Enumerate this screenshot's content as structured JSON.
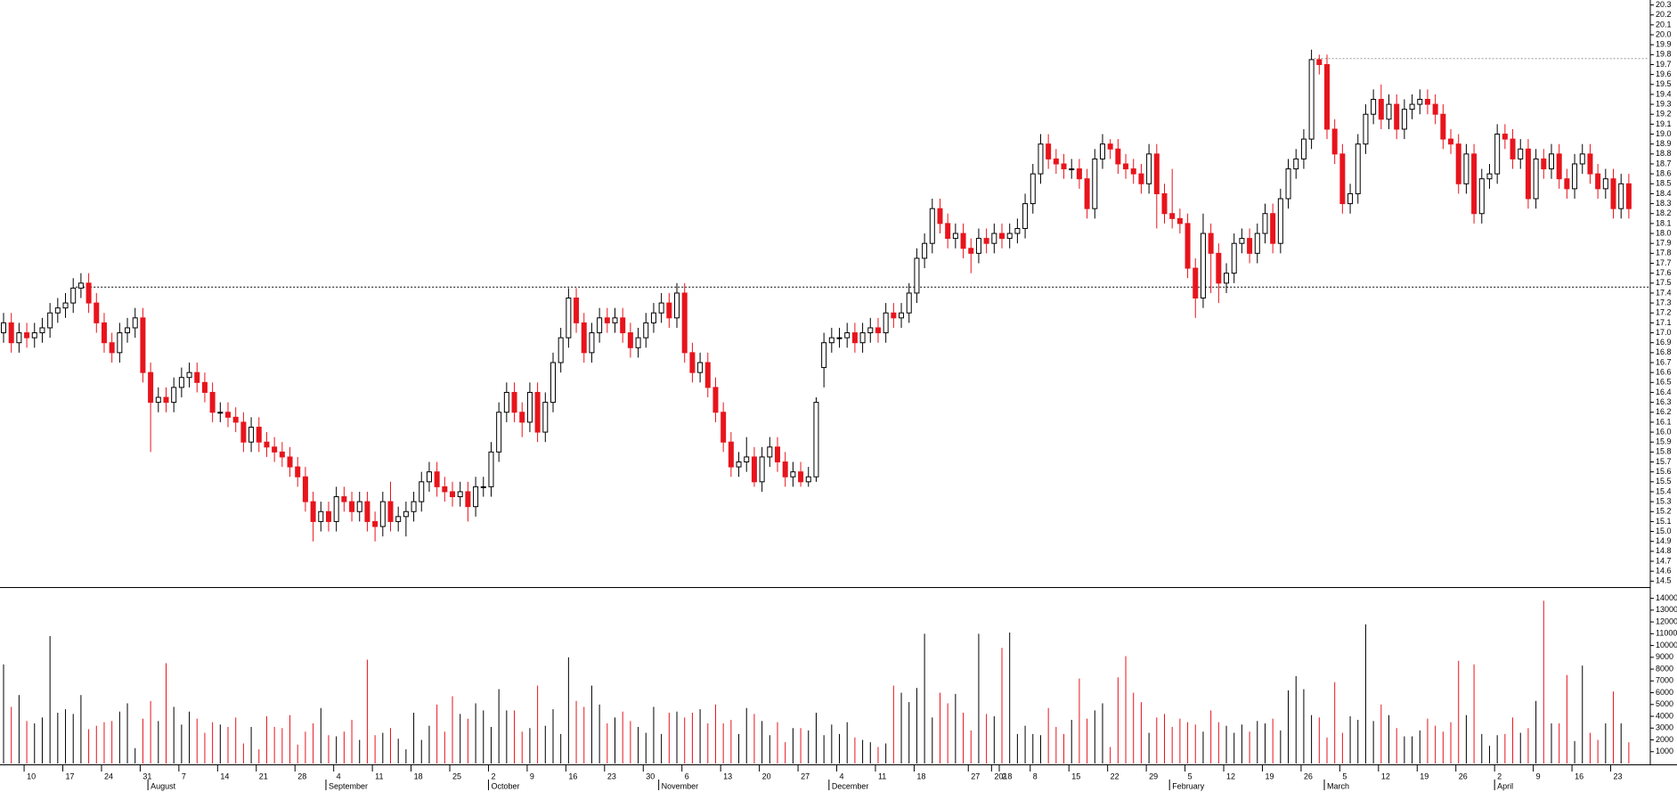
{
  "chart_data": {
    "type": "candlestick",
    "categories": [
      null,
      null,
      null,
      "10",
      null,
      null,
      null,
      null,
      "17",
      null,
      null,
      null,
      null,
      "24",
      null,
      null,
      null,
      null,
      "31",
      null,
      null,
      null,
      null,
      "7",
      null,
      null,
      null,
      null,
      "14",
      null,
      null,
      null,
      null,
      "21",
      null,
      null,
      null,
      null,
      "28",
      null,
      null,
      null,
      null,
      "4",
      null,
      null,
      null,
      null,
      "11",
      null,
      null,
      null,
      null,
      "18",
      null,
      null,
      null,
      null,
      "25",
      null,
      null,
      null,
      null,
      "2",
      null,
      null,
      null,
      null,
      "9",
      null,
      null,
      null,
      null,
      "16",
      null,
      null,
      null,
      null,
      "23",
      null,
      null,
      null,
      null,
      "30",
      null,
      null,
      null,
      null,
      "6",
      null,
      null,
      null,
      null,
      "13",
      null,
      null,
      null,
      null,
      "20",
      null,
      null,
      null,
      null,
      "27",
      null,
      null,
      null,
      null,
      "4",
      null,
      null,
      null,
      null,
      "11",
      null,
      null,
      null,
      null,
      "18",
      null,
      null,
      null,
      null,
      null,
      null,
      "27",
      null,
      null,
      "2018",
      "2",
      null,
      null,
      null,
      "8",
      null,
      null,
      null,
      null,
      "15",
      null,
      null,
      null,
      null,
      "22",
      null,
      null,
      null,
      null,
      "29",
      null,
      null,
      null,
      null,
      "5",
      null,
      null,
      null,
      null,
      "12",
      null,
      null,
      null,
      null,
      "19",
      null,
      null,
      null,
      null,
      "26",
      null,
      null,
      null,
      null,
      "5",
      null,
      null,
      null,
      null,
      "12",
      null,
      null,
      null,
      null,
      "19",
      null,
      null,
      null,
      null,
      "26",
      null,
      null,
      null,
      null,
      "2",
      null,
      null,
      null,
      null,
      "9",
      null,
      null,
      null,
      null,
      "16",
      null,
      null,
      null,
      null,
      "23",
      null,
      null
    ],
    "month_labels": [
      null,
      null,
      null,
      null,
      null,
      null,
      null,
      null,
      null,
      null,
      null,
      null,
      null,
      null,
      null,
      null,
      null,
      null,
      null,
      "August",
      null,
      null,
      null,
      null,
      null,
      null,
      null,
      null,
      null,
      null,
      null,
      null,
      null,
      null,
      null,
      null,
      null,
      null,
      null,
      null,
      null,
      null,
      "September",
      null,
      null,
      null,
      null,
      null,
      null,
      null,
      null,
      null,
      null,
      null,
      null,
      null,
      null,
      null,
      null,
      null,
      null,
      null,
      null,
      "October",
      null,
      null,
      null,
      null,
      null,
      null,
      null,
      null,
      null,
      null,
      null,
      null,
      null,
      null,
      null,
      null,
      null,
      null,
      null,
      null,
      null,
      "November",
      null,
      null,
      null,
      null,
      null,
      null,
      null,
      null,
      null,
      null,
      null,
      null,
      null,
      null,
      null,
      null,
      null,
      null,
      null,
      null,
      null,
      "December",
      null,
      null,
      null,
      null,
      null,
      null,
      null,
      null,
      null,
      null,
      null,
      null,
      null,
      null,
      null,
      null,
      null,
      null,
      null,
      null,
      null,
      null,
      null,
      null,
      null,
      null,
      null,
      null,
      null,
      null,
      null,
      null,
      null,
      null,
      null,
      null,
      null,
      null,
      null,
      null,
      null,
      null,
      null,
      "February",
      null,
      null,
      null,
      null,
      null,
      null,
      null,
      null,
      null,
      null,
      null,
      null,
      null,
      null,
      null,
      null,
      null,
      null,
      null,
      "March",
      null,
      null,
      null,
      null,
      null,
      null,
      null,
      null,
      null,
      null,
      null,
      null,
      null,
      null,
      null,
      null,
      null,
      null,
      null,
      null,
      null,
      "April",
      null,
      null,
      null,
      null,
      null,
      null,
      null,
      null,
      null,
      null,
      null,
      null,
      null,
      null,
      null,
      null,
      null
    ],
    "open": [
      17.0,
      17.1,
      16.9,
      17.0,
      16.95,
      17.0,
      17.05,
      17.2,
      17.25,
      17.3,
      17.45,
      17.5,
      17.3,
      17.1,
      16.9,
      16.8,
      17.0,
      17.05,
      17.15,
      16.6,
      16.3,
      16.35,
      16.3,
      16.45,
      16.55,
      16.6,
      16.5,
      16.4,
      16.2,
      16.2,
      16.15,
      16.1,
      15.9,
      16.05,
      15.9,
      15.85,
      15.8,
      15.75,
      15.65,
      15.55,
      15.3,
      15.1,
      15.2,
      15.1,
      15.35,
      15.3,
      15.2,
      15.3,
      15.1,
      15.05,
      15.3,
      15.1,
      15.15,
      15.2,
      15.3,
      15.5,
      15.6,
      15.45,
      15.4,
      15.35,
      15.4,
      15.25,
      15.45,
      15.45,
      15.8,
      16.2,
      16.4,
      16.2,
      16.1,
      16.4,
      16.0,
      16.3,
      16.7,
      16.95,
      17.35,
      17.1,
      16.8,
      17.0,
      17.15,
      17.1,
      17.15,
      17.0,
      16.85,
      16.95,
      17.1,
      17.2,
      17.3,
      17.15,
      17.4,
      16.8,
      16.6,
      16.7,
      16.45,
      16.2,
      15.9,
      15.65,
      15.7,
      15.75,
      15.5,
      15.75,
      15.85,
      15.7,
      15.55,
      15.6,
      15.5,
      15.55,
      16.65,
      16.9,
      16.95,
      16.95,
      17.0,
      16.9,
      17.0,
      17.05,
      17.0,
      17.2,
      17.15,
      17.2,
      17.4,
      17.75,
      17.9,
      18.25,
      18.1,
      17.95,
      18.0,
      17.85,
      17.8,
      17.95,
      17.9,
      18.0,
      17.95,
      18.0,
      18.05,
      18.3,
      18.6,
      18.9,
      18.75,
      18.7,
      18.65,
      18.65,
      18.55,
      18.25,
      18.75,
      18.9,
      18.85,
      18.7,
      18.65,
      18.6,
      18.5,
      18.8,
      18.4,
      18.2,
      18.15,
      18.1,
      17.65,
      17.35,
      18.0,
      17.8,
      17.5,
      17.6,
      17.9,
      17.95,
      17.8,
      18.0,
      18.2,
      17.9,
      18.35,
      18.65,
      18.75,
      18.95,
      19.75,
      19.7,
      19.05,
      18.8,
      18.3,
      18.4,
      18.9,
      19.2,
      19.35,
      19.15,
      19.3,
      19.05,
      19.25,
      19.3,
      19.35,
      19.3,
      19.2,
      18.95,
      18.9,
      18.5,
      18.8,
      18.2,
      18.55,
      18.6,
      19.0,
      18.95,
      18.75,
      18.85,
      18.35,
      18.75,
      18.65,
      18.8,
      18.55,
      18.45,
      18.7,
      18.8,
      18.6,
      18.45,
      18.55,
      18.25,
      18.5
    ],
    "high": [
      17.2,
      17.2,
      17.1,
      17.1,
      17.1,
      17.15,
      17.3,
      17.35,
      17.4,
      17.55,
      17.6,
      17.6,
      17.4,
      17.2,
      17.0,
      17.1,
      17.15,
      17.25,
      17.25,
      16.7,
      16.45,
      16.45,
      16.55,
      16.65,
      16.7,
      16.7,
      16.6,
      16.5,
      16.3,
      16.3,
      16.25,
      16.2,
      16.15,
      16.15,
      16.0,
      15.95,
      15.9,
      15.85,
      15.75,
      15.65,
      15.4,
      15.3,
      15.3,
      15.45,
      15.45,
      15.4,
      15.4,
      15.4,
      15.2,
      15.4,
      15.5,
      15.25,
      15.3,
      15.4,
      15.6,
      15.7,
      15.7,
      15.55,
      15.5,
      15.5,
      15.5,
      15.55,
      15.55,
      15.9,
      16.3,
      16.5,
      16.5,
      16.3,
      16.5,
      16.5,
      16.4,
      16.8,
      17.05,
      17.45,
      17.45,
      17.2,
      17.1,
      17.25,
      17.25,
      17.25,
      17.25,
      17.1,
      17.05,
      17.2,
      17.3,
      17.4,
      17.4,
      17.5,
      17.5,
      16.9,
      16.8,
      16.8,
      16.55,
      16.3,
      16.0,
      15.8,
      15.95,
      15.85,
      15.85,
      15.95,
      15.95,
      15.8,
      15.7,
      15.7,
      15.65,
      16.35,
      17.0,
      17.05,
      17.05,
      17.1,
      17.1,
      17.1,
      17.15,
      17.15,
      17.3,
      17.3,
      17.3,
      17.5,
      17.85,
      18.0,
      18.35,
      18.35,
      18.2,
      18.1,
      18.1,
      17.95,
      18.05,
      18.05,
      18.1,
      18.1,
      18.1,
      18.15,
      18.4,
      18.7,
      19.0,
      19.0,
      18.85,
      18.8,
      18.75,
      18.75,
      18.65,
      18.85,
      19.0,
      18.95,
      18.95,
      18.8,
      18.75,
      18.7,
      18.9,
      18.9,
      18.5,
      18.65,
      18.25,
      18.2,
      17.75,
      18.2,
      18.1,
      17.9,
      17.7,
      18.0,
      18.05,
      18.05,
      18.1,
      18.3,
      18.3,
      18.45,
      18.75,
      18.85,
      19.05,
      19.85,
      19.8,
      19.8,
      19.15,
      18.9,
      18.5,
      19.0,
      19.3,
      19.45,
      19.5,
      19.4,
      19.4,
      19.35,
      19.4,
      19.45,
      19.45,
      19.4,
      19.3,
      19.05,
      19.0,
      18.9,
      18.9,
      18.65,
      18.7,
      19.1,
      19.1,
      19.05,
      18.95,
      18.95,
      18.85,
      18.85,
      18.9,
      18.9,
      18.65,
      18.8,
      18.9,
      18.9,
      18.7,
      18.65,
      18.65,
      18.6,
      18.6
    ],
    "low": [
      16.9,
      16.8,
      16.8,
      16.85,
      16.85,
      16.9,
      16.95,
      17.1,
      17.15,
      17.2,
      17.35,
      17.2,
      17.0,
      16.8,
      16.7,
      16.7,
      16.9,
      16.95,
      16.5,
      15.8,
      16.2,
      16.2,
      16.2,
      16.35,
      16.45,
      16.4,
      16.3,
      16.1,
      16.1,
      16.05,
      16.0,
      15.8,
      15.8,
      15.8,
      15.75,
      15.7,
      15.65,
      15.55,
      15.45,
      15.2,
      14.9,
      15.0,
      15.0,
      15.0,
      15.2,
      15.1,
      15.1,
      15.0,
      14.9,
      14.95,
      15.0,
      15.0,
      14.95,
      15.1,
      15.2,
      15.4,
      15.35,
      15.3,
      15.25,
      15.25,
      15.1,
      15.15,
      15.35,
      15.35,
      15.7,
      16.1,
      16.1,
      15.95,
      16.0,
      15.9,
      15.9,
      16.2,
      16.6,
      16.85,
      17.0,
      16.7,
      16.7,
      16.9,
      17.0,
      17.0,
      16.9,
      16.75,
      16.75,
      16.85,
      17.0,
      17.1,
      17.05,
      17.05,
      16.7,
      16.5,
      16.5,
      16.35,
      16.1,
      15.8,
      15.55,
      15.55,
      15.6,
      15.45,
      15.4,
      15.65,
      15.6,
      15.45,
      15.45,
      15.45,
      15.45,
      15.5,
      16.45,
      16.8,
      16.85,
      16.85,
      16.8,
      16.8,
      16.9,
      16.9,
      16.9,
      17.05,
      17.05,
      17.1,
      17.3,
      17.65,
      17.8,
      18.0,
      17.85,
      17.85,
      17.75,
      17.6,
      17.7,
      17.8,
      17.8,
      17.85,
      17.85,
      17.9,
      17.95,
      18.2,
      18.5,
      18.65,
      18.6,
      18.55,
      18.55,
      18.45,
      18.15,
      18.15,
      18.65,
      18.75,
      18.6,
      18.55,
      18.5,
      18.4,
      18.4,
      18.05,
      18.1,
      18.05,
      18.0,
      17.55,
      17.15,
      17.25,
      17.4,
      17.3,
      17.4,
      17.5,
      17.8,
      17.7,
      17.7,
      17.9,
      17.8,
      17.8,
      18.25,
      18.55,
      18.65,
      18.85,
      19.6,
      18.95,
      18.7,
      18.2,
      18.2,
      18.3,
      18.8,
      19.1,
      19.05,
      19.05,
      18.95,
      18.95,
      19.15,
      19.2,
      19.2,
      19.1,
      18.85,
      18.8,
      18.4,
      18.4,
      18.1,
      18.1,
      18.45,
      18.5,
      18.85,
      18.65,
      18.65,
      18.25,
      18.25,
      18.55,
      18.55,
      18.45,
      18.35,
      18.35,
      18.6,
      18.5,
      18.35,
      18.35,
      18.15,
      18.15,
      18.15
    ],
    "close": [
      17.1,
      16.9,
      17.0,
      16.95,
      17.0,
      17.05,
      17.2,
      17.25,
      17.3,
      17.45,
      17.5,
      17.3,
      17.1,
      16.9,
      16.8,
      17.0,
      17.05,
      17.15,
      16.6,
      16.3,
      16.35,
      16.3,
      16.45,
      16.55,
      16.6,
      16.5,
      16.4,
      16.2,
      16.2,
      16.15,
      16.1,
      15.9,
      16.05,
      15.9,
      15.85,
      15.8,
      15.75,
      15.65,
      15.55,
      15.3,
      15.1,
      15.2,
      15.1,
      15.35,
      15.3,
      15.2,
      15.3,
      15.1,
      15.05,
      15.3,
      15.1,
      15.15,
      15.2,
      15.3,
      15.5,
      15.6,
      15.45,
      15.4,
      15.35,
      15.4,
      15.25,
      15.45,
      15.45,
      15.8,
      16.2,
      16.4,
      16.2,
      16.1,
      16.4,
      16.0,
      16.3,
      16.7,
      16.95,
      17.35,
      17.1,
      16.8,
      17.0,
      17.15,
      17.1,
      17.15,
      17.0,
      16.85,
      16.95,
      17.1,
      17.2,
      17.3,
      17.15,
      17.4,
      16.8,
      16.6,
      16.7,
      16.45,
      16.2,
      15.9,
      15.65,
      15.7,
      15.75,
      15.5,
      15.75,
      15.85,
      15.7,
      15.55,
      15.6,
      15.5,
      15.55,
      16.3,
      16.9,
      16.95,
      16.95,
      17.0,
      16.9,
      17.0,
      17.05,
      17.0,
      17.2,
      17.15,
      17.2,
      17.4,
      17.75,
      17.9,
      18.25,
      18.1,
      17.95,
      18.0,
      17.85,
      17.8,
      17.95,
      17.9,
      18.0,
      17.95,
      18.0,
      18.05,
      18.3,
      18.6,
      18.9,
      18.75,
      18.7,
      18.65,
      18.65,
      18.55,
      18.25,
      18.75,
      18.9,
      18.85,
      18.7,
      18.65,
      18.6,
      18.5,
      18.8,
      18.4,
      18.2,
      18.15,
      18.1,
      17.65,
      17.35,
      18.0,
      17.8,
      17.5,
      17.6,
      17.9,
      17.95,
      17.8,
      18.0,
      18.2,
      17.9,
      18.35,
      18.65,
      18.75,
      18.95,
      19.75,
      19.7,
      19.05,
      18.8,
      18.3,
      18.4,
      18.9,
      19.2,
      19.35,
      19.15,
      19.3,
      19.05,
      19.25,
      19.3,
      19.35,
      19.3,
      19.2,
      18.95,
      18.9,
      18.5,
      18.8,
      18.2,
      18.55,
      18.6,
      19.0,
      18.95,
      18.75,
      18.85,
      18.35,
      18.75,
      18.65,
      18.8,
      18.55,
      18.45,
      18.7,
      18.8,
      18.6,
      18.45,
      18.55,
      18.25,
      18.5,
      18.25
    ],
    "volume": [
      8400,
      4800,
      5800,
      3600,
      3400,
      3900,
      10800,
      4300,
      4600,
      4200,
      5800,
      2900,
      3200,
      3500,
      3600,
      4400,
      5100,
      1300,
      3800,
      5300,
      3600,
      8500,
      4800,
      3300,
      4400,
      3800,
      2600,
      3500,
      3300,
      3100,
      3900,
      1700,
      3100,
      1200,
      4000,
      3100,
      3000,
      4100,
      1600,
      2700,
      3400,
      4700,
      2400,
      2300,
      2700,
      3700,
      2000,
      8800,
      2400,
      2600,
      3000,
      2100,
      1200,
      4300,
      2000,
      3200,
      5000,
      2700,
      5700,
      4200,
      3800,
      5100,
      4500,
      3100,
      6300,
      4500,
      4500,
      2700,
      3000,
      6600,
      3200,
      4600,
      2500,
      9000,
      5300,
      4800,
      6600,
      5000,
      3400,
      3900,
      4400,
      3600,
      3100,
      2600,
      4800,
      2500,
      4300,
      4400,
      3900,
      4300,
      4600,
      3400,
      5000,
      3400,
      3700,
      2500,
      4700,
      4200,
      3600,
      2400,
      3500,
      1800,
      3000,
      3000,
      2800,
      4300,
      2400,
      3300,
      2500,
      3500,
      2200,
      2000,
      1800,
      1400,
      1700,
      6600,
      6000,
      5200,
      6400,
      11000,
      3900,
      6000,
      5100,
      5900,
      4300,
      2800,
      11000,
      4200,
      4000,
      9800,
      11100,
      2500,
      3200,
      2500,
      2400,
      4700,
      3100,
      2500,
      3700,
      7200,
      3800,
      4500,
      5100,
      1400,
      7300,
      9100,
      6000,
      5200,
      2600,
      3900,
      4200,
      3100,
      3800,
      3500,
      3300,
      2700,
      4500,
      3500,
      3200,
      2600,
      3300,
      2700,
      3600,
      3400,
      3800,
      2800,
      6200,
      7400,
      6300,
      4100,
      3900,
      2200,
      6900,
      2600,
      4000,
      3700,
      11800,
      3600,
      5000,
      4100,
      3000,
      2300,
      2300,
      2800,
      3800,
      3200,
      2700,
      3500,
      8700,
      4100,
      8400,
      2500,
      1500,
      2400,
      2500,
      3900,
      2600,
      3000,
      5300,
      13800,
      3400,
      3400,
      7500,
      1900,
      8300,
      2600,
      2000,
      3400,
      6100,
      3400,
      1800
    ],
    "up_color": "#ffffff",
    "up_stroke": "#000000",
    "down_color": "#e8141c",
    "ylim": [
      14.44,
      20.35
    ],
    "yticks": [
      14.5,
      14.6,
      14.7,
      14.8,
      14.9,
      {
        "value": 15,
        "label": "15.0"
      },
      15.1,
      15.2,
      15.3,
      15.4,
      15.5,
      15.6,
      15.7,
      15.8,
      15.9,
      {
        "value": 16,
        "label": "16.0"
      },
      16.1,
      16.2,
      16.3,
      16.4,
      16.5,
      16.6,
      16.7,
      16.8,
      16.9,
      {
        "value": 17,
        "label": "17.0"
      },
      17.1,
      17.2,
      17.3,
      17.4,
      17.5,
      17.6,
      17.7,
      17.8,
      17.9,
      {
        "value": 18,
        "label": "18.0"
      },
      18.1,
      18.2,
      18.3,
      18.4,
      18.5,
      18.6,
      18.7,
      18.8,
      18.9,
      {
        "value": 19,
        "label": "19.0"
      },
      19.1,
      19.2,
      19.3,
      19.4,
      19.5,
      19.6,
      19.7,
      19.8,
      19.9,
      {
        "value": 20,
        "label": "20.0"
      },
      20.1,
      20.2,
      20.3
    ],
    "volume_ylim": [
      0,
      14800
    ],
    "volume_yticks": [
      1000,
      2000,
      3000,
      4000,
      5000,
      6000,
      7000,
      8000,
      9000,
      10000,
      11000,
      12000,
      13000,
      14000
    ],
    "reference_lines": [
      17.46,
      19.76
    ]
  }
}
